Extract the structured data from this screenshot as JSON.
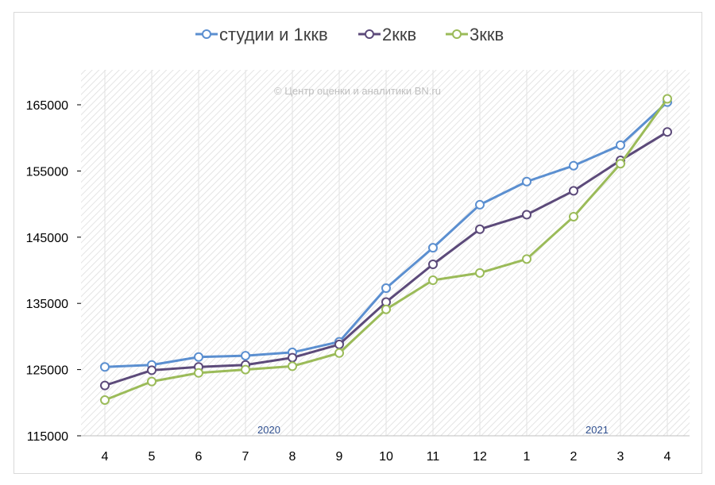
{
  "chart_data": {
    "type": "line",
    "watermark": "© Центр оценки и аналитики BN.ru",
    "categories": [
      "4",
      "5",
      "6",
      "7",
      "8",
      "9",
      "10",
      "11",
      "12",
      "1",
      "2",
      "3",
      "4"
    ],
    "year_labels": [
      {
        "label": "2020",
        "at_category_index": 3.5
      },
      {
        "label": "2021",
        "at_category_index": 10.5
      }
    ],
    "ylim": [
      115000,
      170000
    ],
    "yticks": [
      115000,
      125000,
      135000,
      145000,
      155000,
      165000
    ],
    "grid": "hatched",
    "legend_position": "top",
    "series": [
      {
        "name": "студии и 1ккв",
        "color": "#5b8fd0",
        "values": [
          125400,
          125700,
          126900,
          127100,
          127600,
          129200,
          137300,
          143400,
          149900,
          153400,
          155800,
          158900,
          165400
        ]
      },
      {
        "name": "2ккв",
        "color": "#5c4a7a",
        "values": [
          122600,
          124900,
          125400,
          125700,
          126800,
          128800,
          135200,
          140900,
          146200,
          148400,
          152000,
          156600,
          160900
        ]
      },
      {
        "name": "3ккв",
        "color": "#9bbb59",
        "values": [
          120400,
          123200,
          124500,
          125000,
          125500,
          127500,
          134100,
          138500,
          139600,
          141700,
          148100,
          156100,
          165900
        ]
      }
    ]
  }
}
